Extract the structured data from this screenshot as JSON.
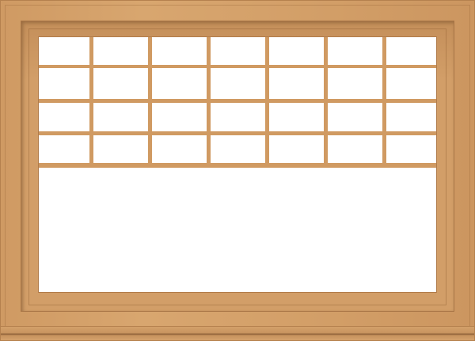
{
  "product": {
    "type": "awning window with upper grille",
    "frame_color": "#d29e67",
    "muntin_color": "#d09a62",
    "glass_color": "#ffffff",
    "upper_grille": {
      "rows": 4,
      "columns": 7
    },
    "lower_pane": {
      "rows": 1,
      "columns": 1
    }
  }
}
